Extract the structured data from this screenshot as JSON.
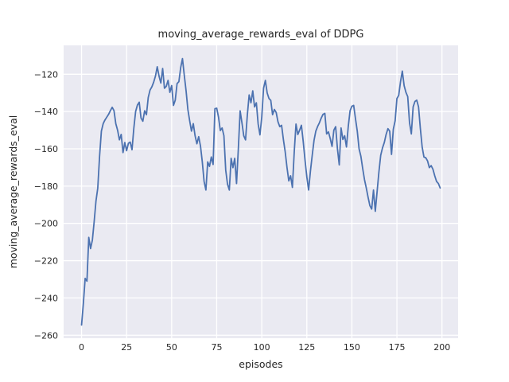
{
  "figure": {
    "background": "#ffffff",
    "axes_background": "#eaeaf2",
    "grid_color": "#ffffff",
    "text_color": "#262626"
  },
  "chart_data": {
    "type": "line",
    "title": "moving_average_rewards_eval of DDPG",
    "xlabel": "episodes",
    "ylabel": "moving_average_rewards_eval",
    "grid": true,
    "legend_position": "none",
    "xlim": [
      -9.95,
      208.95
    ],
    "ylim": [
      -261.6,
      -104.5
    ],
    "xticks": [
      0,
      25,
      50,
      75,
      100,
      125,
      150,
      175,
      200
    ],
    "yticks": [
      -120,
      -140,
      -160,
      -180,
      -200,
      -220,
      -240,
      -260
    ],
    "x_start": 0,
    "x_step": 1,
    "series": [
      {
        "name": "moving_average_rewards_eval",
        "color": "#4c72b0",
        "values": [
          -254.5,
          -243,
          -229.5,
          -231,
          -207.5,
          -213.5,
          -209,
          -199,
          -188,
          -181,
          -164,
          -150.5,
          -146.5,
          -144.5,
          -143,
          -141.5,
          -139.5,
          -137.7,
          -139.5,
          -146.5,
          -150,
          -155.2,
          -152.3,
          -162,
          -156.6,
          -161,
          -157,
          -156.4,
          -160.5,
          -149,
          -140,
          -136.5,
          -135,
          -143.5,
          -145.2,
          -139.6,
          -141.7,
          -132.5,
          -128.5,
          -126.8,
          -124.3,
          -121,
          -116,
          -121,
          -124.7,
          -116.9,
          -127.5,
          -126.5,
          -123.3,
          -129.7,
          -126.1,
          -136.7,
          -133.9,
          -125,
          -124,
          -116.5,
          -111.6,
          -120.5,
          -128.9,
          -138.9,
          -145,
          -150.5,
          -146.5,
          -153,
          -157.3,
          -153.5,
          -158.5,
          -167,
          -177.5,
          -182.1,
          -167,
          -169.4,
          -164.4,
          -168.4,
          -138.5,
          -138.2,
          -143,
          -150.2,
          -148.8,
          -153,
          -171.5,
          -179,
          -182.1,
          -165.1,
          -170.1,
          -165.1,
          -178.6,
          -160,
          -139.6,
          -146,
          -153,
          -155.2,
          -141.7,
          -131.1,
          -135.3,
          -128.9,
          -137.5,
          -135.3,
          -146.7,
          -152.5,
          -143,
          -127.5,
          -123.3,
          -130,
          -133,
          -134,
          -141.7,
          -138.9,
          -140.5,
          -145.5,
          -148.1,
          -147.4,
          -155,
          -161.6,
          -170,
          -177.2,
          -174.5,
          -180.7,
          -162,
          -146.7,
          -152.3,
          -150,
          -147.4,
          -156,
          -166,
          -175,
          -182.1,
          -172,
          -163.5,
          -155.5,
          -150.5,
          -148,
          -146,
          -143.5,
          -141.5,
          -141,
          -152,
          -150.9,
          -154.5,
          -158.7,
          -150,
          -148.1,
          -160,
          -168.6,
          -148.8,
          -155,
          -153,
          -159,
          -148,
          -139.6,
          -137.2,
          -136.7,
          -143.8,
          -150.5,
          -160,
          -164,
          -170.5,
          -176.5,
          -181,
          -186,
          -190.5,
          -192.3,
          -182.1,
          -193.5,
          -183,
          -172.5,
          -163.5,
          -159.5,
          -156.6,
          -152.3,
          -149.2,
          -150.5,
          -163,
          -149.5,
          -145,
          -133,
          -131.3,
          -124,
          -118.3,
          -126.1,
          -129.7,
          -132,
          -146,
          -152,
          -137.5,
          -134.6,
          -133.9,
          -137.5,
          -149,
          -159,
          -164.4,
          -164.8,
          -166.5,
          -170.1,
          -169,
          -171,
          -174.5,
          -177.5,
          -178.6,
          -181
        ]
      }
    ]
  }
}
